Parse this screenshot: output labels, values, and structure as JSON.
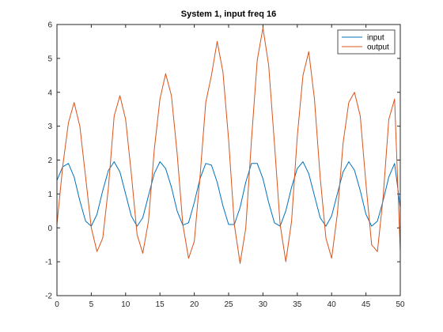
{
  "chart_data": {
    "type": "line",
    "title": "System 1, input freq 16",
    "xlabel": "",
    "ylabel": "",
    "xlim": [
      0,
      50
    ],
    "ylim": [
      -2,
      6
    ],
    "xticks": [
      0,
      5,
      10,
      15,
      20,
      25,
      30,
      35,
      40,
      45,
      50
    ],
    "yticks": [
      -2,
      -1,
      0,
      1,
      2,
      3,
      4,
      5,
      6
    ],
    "grid": false,
    "legend_position": "top-right",
    "x": [
      0,
      0.8333,
      1.6667,
      2.5,
      3.3333,
      4.1667,
      5,
      5.8333,
      6.6667,
      7.5,
      8.3333,
      9.1667,
      10,
      10.8333,
      11.6667,
      12.5,
      13.3333,
      14.1667,
      15,
      15.8333,
      16.6667,
      17.5,
      18.3333,
      19.1667,
      20,
      20.8333,
      21.6667,
      22.5,
      23.3333,
      24.1667,
      25,
      25.8333,
      26.6667,
      27.5,
      28.3333,
      29.1667,
      30,
      30.8333,
      31.6667,
      32.5,
      33.3333,
      34.1667,
      35,
      35.8333,
      36.6667,
      37.5,
      38.3333,
      39.1667,
      40,
      40.8333,
      41.6667,
      42.5,
      43.3333,
      44.1667,
      45,
      45.8333,
      46.6667,
      47.5,
      48.3333,
      49.1667,
      50
    ],
    "series": [
      {
        "name": "input",
        "color": "#0072BD",
        "values": [
          1.4,
          1.8,
          1.9,
          1.5,
          0.8,
          0.2,
          0.05,
          0.4,
          1.1,
          1.7,
          1.95,
          1.65,
          1.0,
          0.35,
          0.05,
          0.3,
          0.95,
          1.6,
          1.95,
          1.75,
          1.2,
          0.5,
          0.08,
          0.15,
          0.75,
          1.45,
          1.9,
          1.85,
          1.35,
          0.65,
          0.1,
          0.1,
          0.6,
          1.35,
          1.9,
          1.9,
          1.45,
          0.75,
          0.15,
          0.05,
          0.5,
          1.2,
          1.75,
          1.95,
          1.6,
          0.95,
          0.3,
          0.05,
          0.35,
          1.0,
          1.65,
          1.95,
          1.7,
          1.1,
          0.4,
          0.05,
          0.2,
          0.8,
          1.5,
          1.9,
          0.6
        ]
      },
      {
        "name": "output",
        "color": "#D95319",
        "values": [
          0.1,
          1.8,
          3.1,
          3.7,
          3.0,
          1.5,
          0.0,
          -0.7,
          -0.3,
          1.2,
          3.3,
          3.9,
          3.2,
          1.6,
          -0.2,
          -0.75,
          0.2,
          2.3,
          3.8,
          4.55,
          3.9,
          2.2,
          0.1,
          -0.9,
          -0.4,
          1.5,
          3.7,
          4.5,
          5.5,
          4.6,
          2.6,
          0.1,
          -1.05,
          0.0,
          2.6,
          4.95,
          5.9,
          4.8,
          2.5,
          0.1,
          -1.0,
          0.2,
          2.7,
          4.5,
          5.2,
          3.8,
          1.5,
          -0.3,
          -0.9,
          0.4,
          2.5,
          3.7,
          4.0,
          3.3,
          1.3,
          -0.5,
          -0.7,
          0.9,
          3.2,
          3.8,
          -0.7
        ]
      }
    ]
  }
}
